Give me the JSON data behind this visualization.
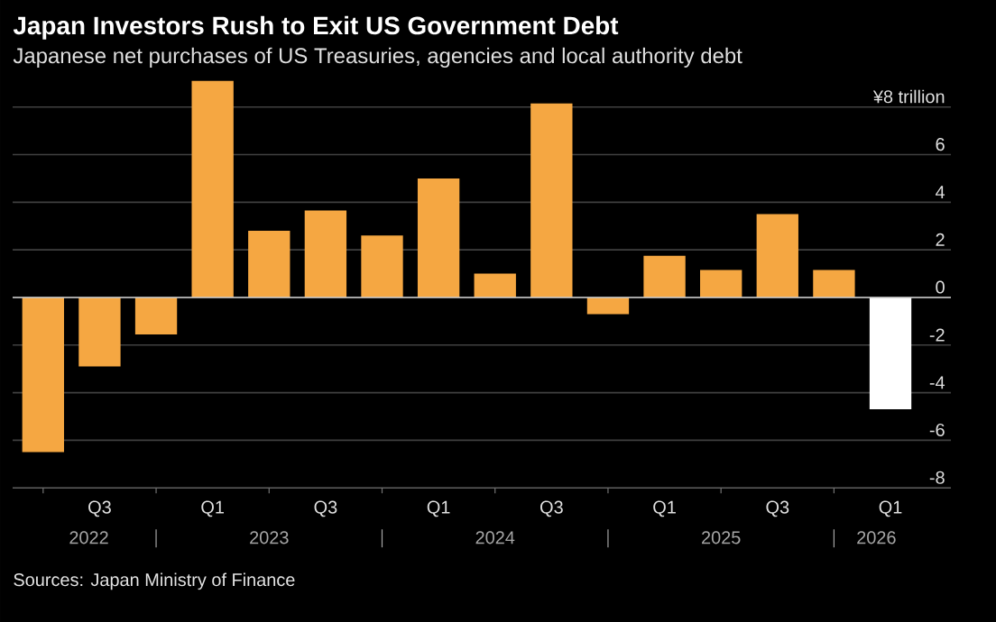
{
  "chart_data": {
    "type": "bar",
    "title": "Japan Investors Rush to Exit US Government Debt",
    "subtitle": "Japanese net purchases of US Treasuries, agencies and local authority debt",
    "categories": [
      null,
      "Q3",
      null,
      "Q1",
      null,
      "Q3",
      null,
      "Q1",
      null,
      "Q3",
      null,
      "Q1",
      null,
      "Q3",
      null,
      "Q1"
    ],
    "values": [
      -6.5,
      -2.9,
      -1.55,
      9.1,
      2.8,
      3.65,
      2.6,
      5.0,
      1.0,
      8.15,
      -0.7,
      1.75,
      1.15,
      3.5,
      1.15,
      -4.7
    ],
    "colors": [
      "#f5a742",
      "#f5a742",
      "#f5a742",
      "#f5a742",
      "#f5a742",
      "#f5a742",
      "#f5a742",
      "#f5a742",
      "#f5a742",
      "#f5a742",
      "#f5a742",
      "#f5a742",
      "#f5a742",
      "#f5a742",
      "#f5a742",
      "#ffffff"
    ],
    "ylim": [
      -8,
      9.3
    ],
    "yticks": [
      -8,
      -6,
      -4,
      -2,
      0,
      2,
      4,
      6,
      {
        "value": 8,
        "label": "¥8 trillion"
      }
    ],
    "grid": "y",
    "annotations": [
      "2022",
      "2023",
      "2024",
      "2025",
      "2026",
      "Sources: Japan Ministry of Finance"
    ]
  }
}
